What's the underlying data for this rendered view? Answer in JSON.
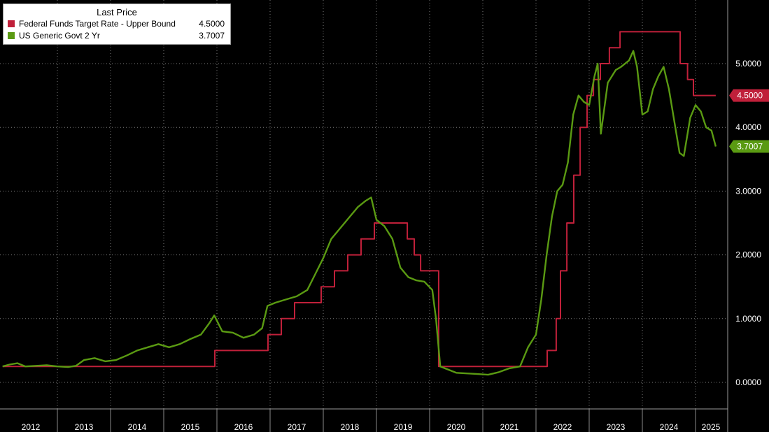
{
  "legend": {
    "header": "Last Price",
    "items": [
      {
        "name": "Federal Funds Target Rate - Upper Bound",
        "value": "4.5000",
        "color": "#c0203a"
      },
      {
        "name": "US Generic Govt 2 Yr",
        "value": "3.7007",
        "color": "#5a9a12"
      }
    ]
  },
  "chart_data": {
    "type": "line",
    "title": "",
    "xlabel": "",
    "ylabel": "",
    "x_tick_labels": [
      "2012",
      "2013",
      "2014",
      "2015",
      "2016",
      "2017",
      "2018",
      "2019",
      "2020",
      "2021",
      "2022",
      "2023",
      "2024",
      "2025"
    ],
    "y_tick_labels": [
      "0.0000",
      "1.0000",
      "2.0000",
      "3.0000",
      "4.0000",
      "5.0000"
    ],
    "ylim": [
      -0.4,
      5.9
    ],
    "xlim": [
      2011.97,
      2025.5
    ],
    "grid": true,
    "legend_position": "top-left",
    "last_value_labels": [
      "4.5000",
      "3.7007"
    ],
    "series": [
      {
        "name": "Federal Funds Target Rate - Upper Bound",
        "color": "#c0203a",
        "step": true,
        "x": [
          2011.97,
          2015.96,
          2016.96,
          2017.21,
          2017.46,
          2017.96,
          2018.21,
          2018.46,
          2018.71,
          2018.96,
          2019.58,
          2019.71,
          2019.83,
          2020.17,
          2022.21,
          2022.38,
          2022.46,
          2022.58,
          2022.71,
          2022.83,
          2022.96,
          2023.08,
          2023.21,
          2023.38,
          2023.58,
          2024.71,
          2024.85,
          2024.96,
          2025.38
        ],
        "y": [
          0.25,
          0.5,
          0.75,
          1.0,
          1.25,
          1.5,
          1.75,
          2.0,
          2.25,
          2.5,
          2.25,
          2.0,
          1.75,
          0.25,
          0.5,
          1.0,
          1.75,
          2.5,
          3.25,
          4.0,
          4.5,
          4.75,
          5.0,
          5.25,
          5.5,
          5.0,
          4.75,
          4.5,
          4.5
        ]
      },
      {
        "name": "US Generic Govt 2 Yr",
        "color": "#5a9a12",
        "step": false,
        "x": [
          2011.97,
          2012.1,
          2012.25,
          2012.4,
          2012.6,
          2012.8,
          2013.0,
          2013.2,
          2013.35,
          2013.5,
          2013.7,
          2013.9,
          2014.1,
          2014.3,
          2014.5,
          2014.7,
          2014.9,
          2015.1,
          2015.3,
          2015.5,
          2015.7,
          2015.85,
          2015.95,
          2016.1,
          2016.3,
          2016.5,
          2016.7,
          2016.85,
          2016.95,
          2017.1,
          2017.3,
          2017.5,
          2017.7,
          2017.85,
          2018.0,
          2018.15,
          2018.3,
          2018.5,
          2018.65,
          2018.8,
          2018.9,
          2019.0,
          2019.15,
          2019.3,
          2019.45,
          2019.6,
          2019.75,
          2019.9,
          2020.05,
          2020.12,
          2020.2,
          2020.35,
          2020.5,
          2020.7,
          2020.9,
          2021.1,
          2021.3,
          2021.5,
          2021.7,
          2021.85,
          2022.0,
          2022.1,
          2022.2,
          2022.3,
          2022.4,
          2022.5,
          2022.6,
          2022.7,
          2022.8,
          2022.9,
          2023.0,
          2023.1,
          2023.16,
          2023.22,
          2023.35,
          2023.5,
          2023.6,
          2023.75,
          2023.83,
          2023.9,
          2024.0,
          2024.1,
          2024.2,
          2024.3,
          2024.4,
          2024.5,
          2024.6,
          2024.7,
          2024.78,
          2024.9,
          2025.0,
          2025.1,
          2025.2,
          2025.3,
          2025.38
        ],
        "y": [
          0.25,
          0.28,
          0.3,
          0.25,
          0.26,
          0.27,
          0.25,
          0.24,
          0.26,
          0.35,
          0.38,
          0.33,
          0.35,
          0.42,
          0.5,
          0.55,
          0.6,
          0.55,
          0.6,
          0.68,
          0.75,
          0.92,
          1.05,
          0.8,
          0.78,
          0.7,
          0.75,
          0.85,
          1.2,
          1.25,
          1.3,
          1.35,
          1.45,
          1.7,
          1.95,
          2.25,
          2.4,
          2.6,
          2.75,
          2.85,
          2.9,
          2.55,
          2.45,
          2.25,
          1.8,
          1.65,
          1.6,
          1.58,
          1.45,
          1.0,
          0.25,
          0.2,
          0.15,
          0.14,
          0.13,
          0.12,
          0.16,
          0.22,
          0.25,
          0.55,
          0.75,
          1.3,
          2.0,
          2.6,
          3.0,
          3.1,
          3.45,
          4.2,
          4.5,
          4.4,
          4.35,
          4.8,
          5.0,
          3.9,
          4.7,
          4.9,
          4.95,
          5.05,
          5.2,
          4.95,
          4.2,
          4.25,
          4.6,
          4.8,
          4.95,
          4.6,
          4.1,
          3.6,
          3.55,
          4.15,
          4.35,
          4.25,
          4.0,
          3.95,
          3.7
        ]
      }
    ]
  }
}
